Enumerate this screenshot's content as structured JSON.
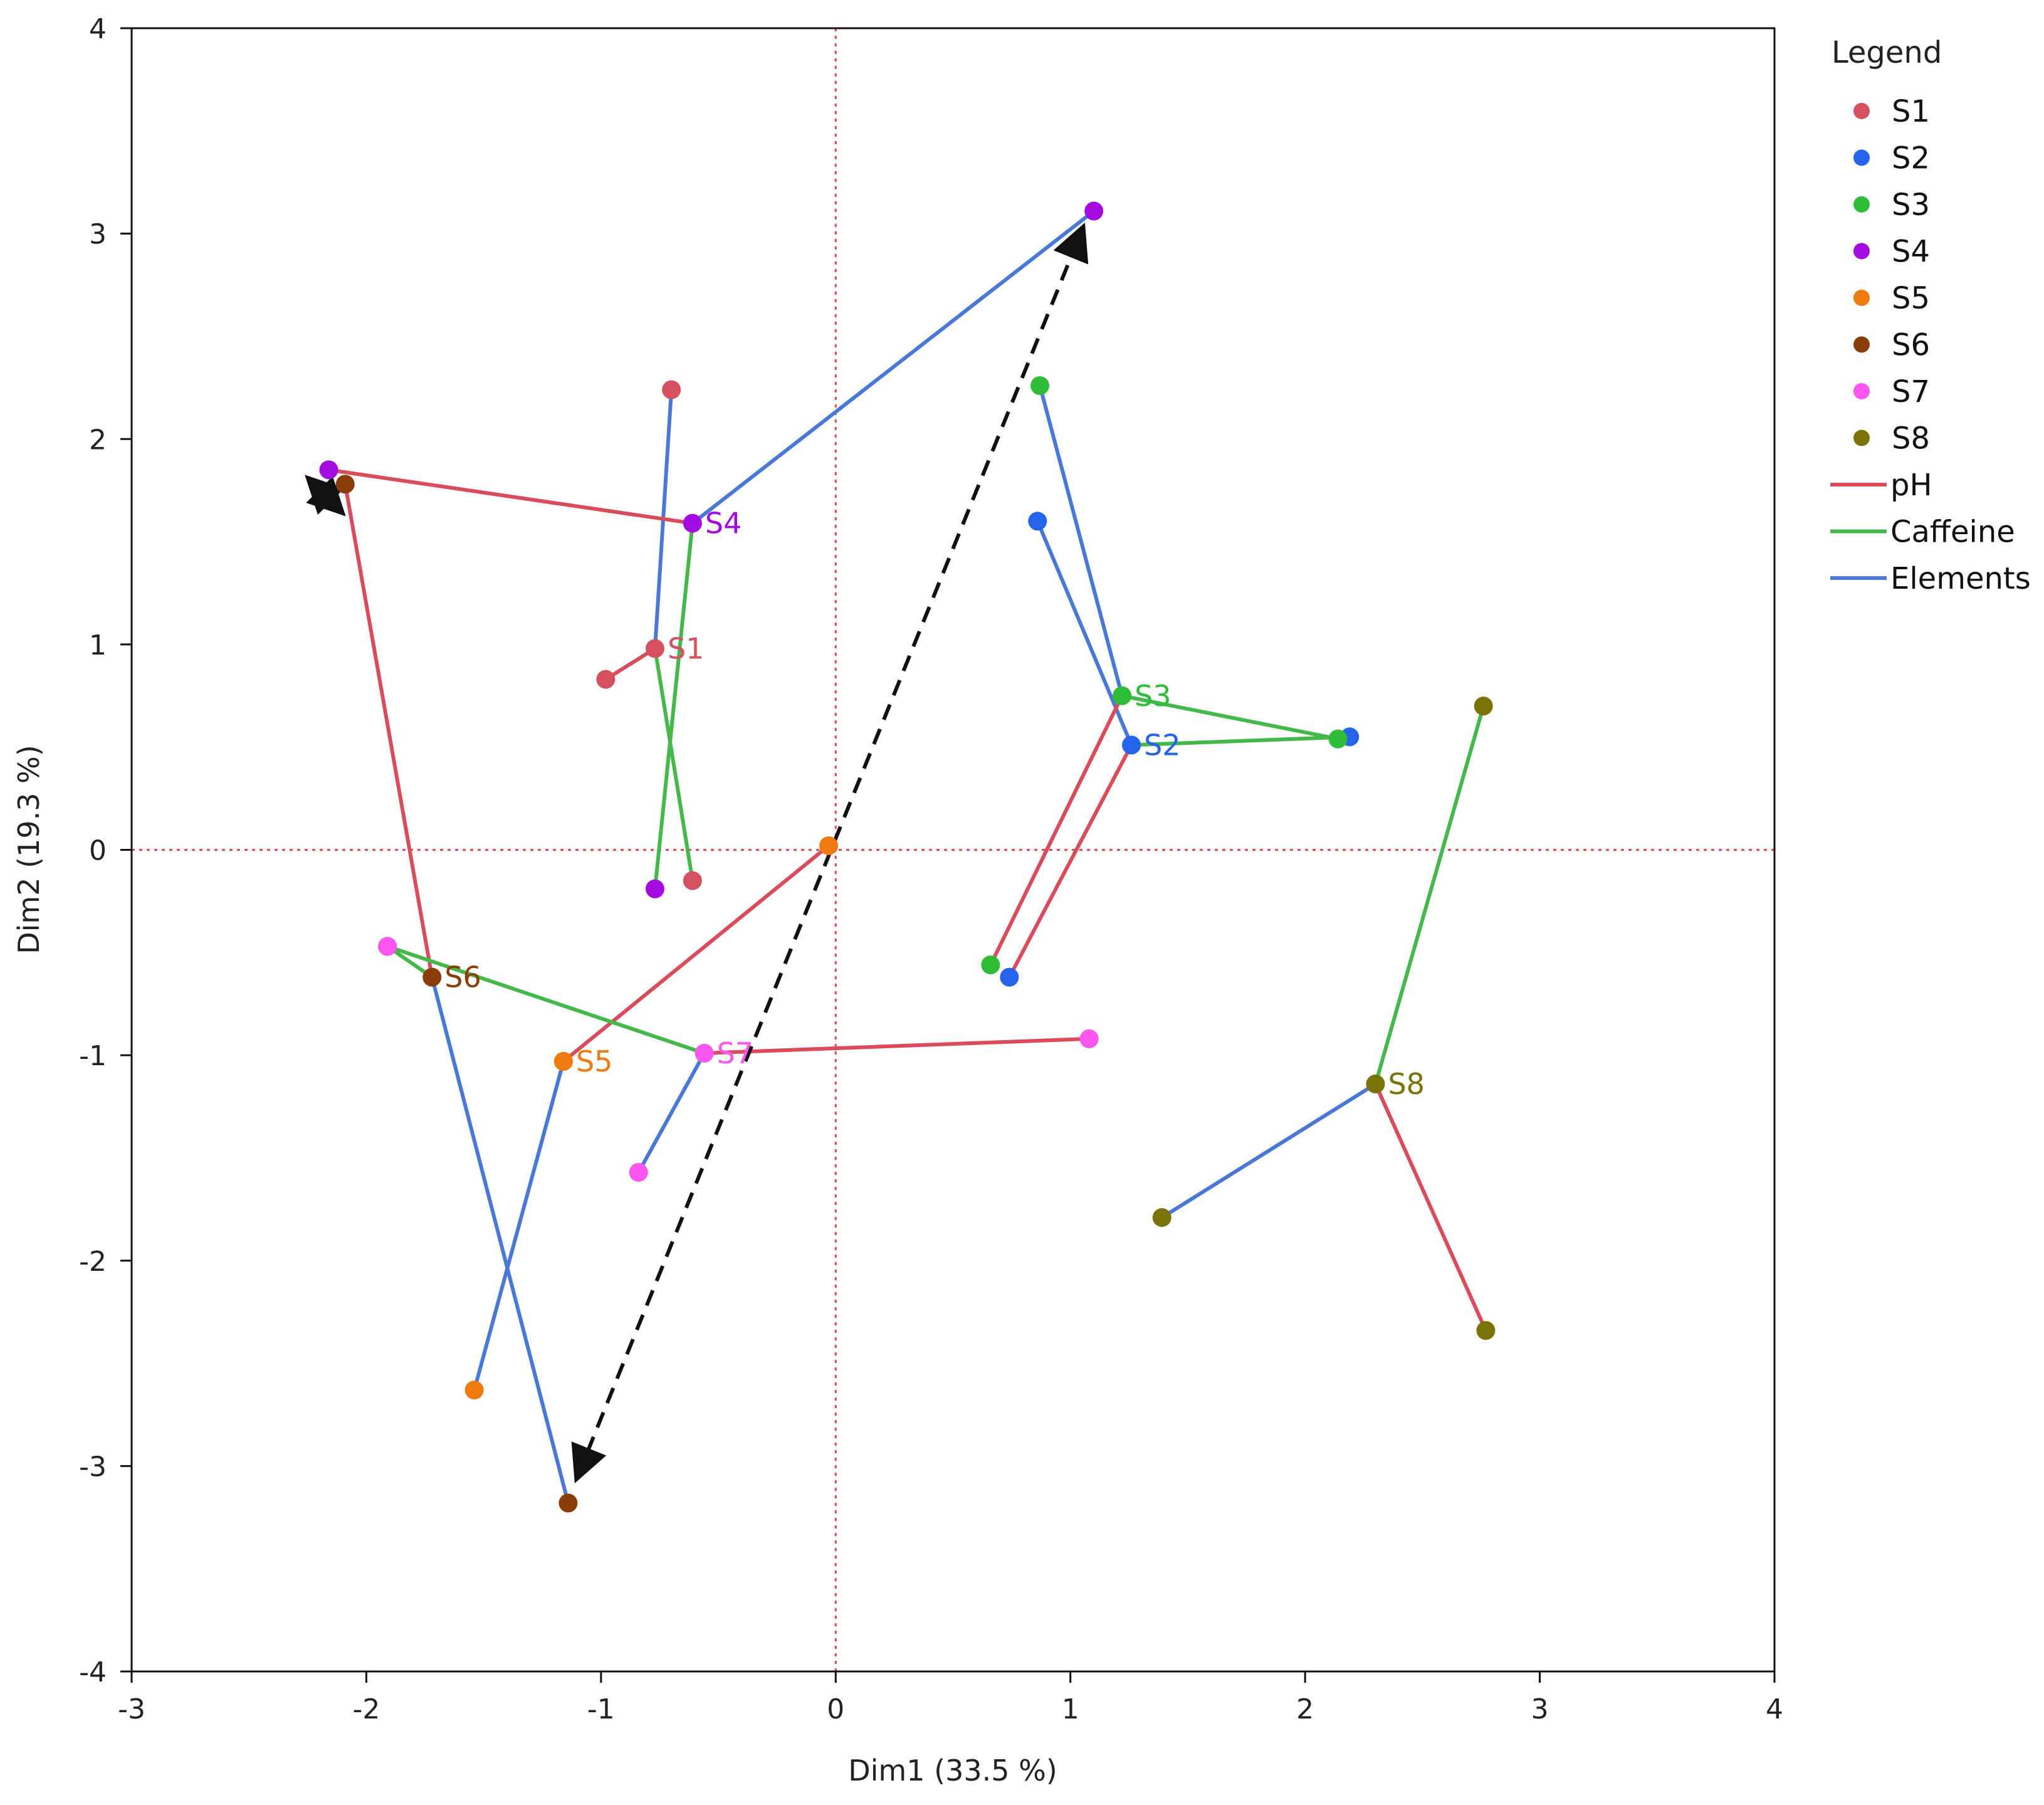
{
  "chart_data": {
    "type": "scatter",
    "xlabel": "Dim1  (33.5 %)",
    "ylabel": "Dim2  (19.3 %)",
    "xlim": [
      -3,
      4
    ],
    "ylim": [
      -4,
      4
    ],
    "xticks": [
      -3,
      -2,
      -1,
      0,
      1,
      2,
      3,
      4
    ],
    "yticks": [
      -4,
      -3,
      -2,
      -1,
      0,
      1,
      2,
      3,
      4
    ],
    "reference_lines": {
      "x": 0,
      "y": 0,
      "style": "dotted",
      "color": "#e8474f"
    },
    "legend": {
      "title": "Legend",
      "placement": "right",
      "entries": [
        {
          "label": "S1",
          "kind": "point",
          "color": "#d6515f"
        },
        {
          "label": "S2",
          "kind": "point",
          "color": "#2563eb"
        },
        {
          "label": "S3",
          "kind": "point",
          "color": "#2ebd36"
        },
        {
          "label": "S4",
          "kind": "point",
          "color": "#a40be0"
        },
        {
          "label": "S5",
          "kind": "point",
          "color": "#ee7a10"
        },
        {
          "label": "S6",
          "kind": "point",
          "color": "#8b3d09"
        },
        {
          "label": "S7",
          "kind": "point",
          "color": "#fb57f0"
        },
        {
          "label": "S8",
          "kind": "point",
          "color": "#7a7308"
        },
        {
          "label": "pH",
          "kind": "line",
          "color": "#d94c5c"
        },
        {
          "label": "Caffeine",
          "kind": "line",
          "color": "#44b84a"
        },
        {
          "label": "Elements",
          "kind": "line",
          "color": "#4a78d6"
        }
      ]
    },
    "group_colors": {
      "pH": "#d94c5c",
      "Caffeine": "#44b84a",
      "Elements": "#4a78d6"
    },
    "samples": [
      {
        "name": "S1",
        "color": "#d6515f",
        "center": [
          -0.77,
          0.98
        ],
        "pH": [
          -0.98,
          0.83
        ],
        "Caffeine": [
          -0.61,
          -0.15
        ],
        "Elements": [
          -0.7,
          2.24
        ]
      },
      {
        "name": "S2",
        "color": "#2563eb",
        "center": [
          1.26,
          0.51
        ],
        "pH": [
          0.74,
          -0.62
        ],
        "Caffeine": [
          2.19,
          0.55
        ],
        "Elements": [
          0.86,
          1.6
        ]
      },
      {
        "name": "S3",
        "color": "#2ebd36",
        "center": [
          1.22,
          0.75
        ],
        "pH": [
          0.66,
          -0.56
        ],
        "Caffeine": [
          2.14,
          0.54
        ],
        "Elements": [
          0.87,
          2.26
        ]
      },
      {
        "name": "S4",
        "color": "#a40be0",
        "center": [
          -0.61,
          1.59
        ],
        "pH": [
          -2.16,
          1.85
        ],
        "Caffeine": [
          -0.77,
          -0.19
        ],
        "Elements": [
          1.1,
          3.11
        ]
      },
      {
        "name": "S5",
        "color": "#ee7a10",
        "center": [
          -1.16,
          -1.03
        ],
        "pH": [
          -0.03,
          0.02
        ],
        "Caffeine": [
          -1.16,
          -1.03
        ],
        "Elements": [
          -1.54,
          -2.63
        ]
      },
      {
        "name": "S6",
        "color": "#8b3d09",
        "center": [
          -1.72,
          -0.62
        ],
        "pH": [
          -2.09,
          1.78
        ],
        "Caffeine": [
          -1.91,
          -0.47
        ],
        "Elements": [
          -1.14,
          -3.18
        ]
      },
      {
        "name": "S7",
        "color": "#fb57f0",
        "center": [
          -0.56,
          -0.99
        ],
        "pH": [
          1.08,
          -0.92
        ],
        "Caffeine": [
          -1.91,
          -0.47
        ],
        "Elements": [
          -0.84,
          -1.57
        ]
      },
      {
        "name": "S8",
        "color": "#7a7308",
        "center": [
          2.3,
          -1.14
        ],
        "pH": [
          2.77,
          -2.34
        ],
        "Caffeine": [
          2.76,
          0.7
        ],
        "Elements": [
          1.39,
          -1.79
        ]
      }
    ],
    "arrows": [
      {
        "from": [
          -1.1,
          -3.05
        ],
        "to": [
          1.05,
          3.02
        ],
        "style": "dashed",
        "double_headed": true
      },
      {
        "from": [
          -2.24,
          1.8
        ],
        "to": [
          -2.11,
          1.65
        ],
        "style": "solid",
        "double_headed": true
      }
    ]
  }
}
